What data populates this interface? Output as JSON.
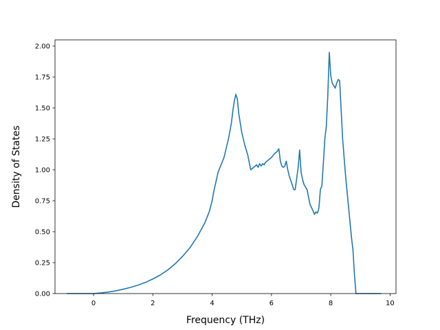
{
  "chart_data": {
    "type": "line",
    "title": "",
    "xlabel": "Frequency (THz)",
    "ylabel": "Density of States",
    "xlim": [
      -1.3,
      10.2
    ],
    "ylim": [
      0,
      2.05
    ],
    "xticks": [
      0,
      2,
      4,
      6,
      8,
      10
    ],
    "xtick_labels": [
      "0",
      "2",
      "4",
      "6",
      "8",
      "10"
    ],
    "yticks": [
      0,
      0.25,
      0.5,
      0.75,
      1.0,
      1.25,
      1.5,
      1.75,
      2.0
    ],
    "ytick_labels": [
      "0.00",
      "0.25",
      "0.50",
      "0.75",
      "1.00",
      "1.25",
      "1.50",
      "1.75",
      "2.00"
    ],
    "grid": false,
    "legend": "none",
    "colors": {
      "line": "#1f77b4",
      "axes": "#000000",
      "background": "#ffffff"
    },
    "series": [
      {
        "x": [
          -0.9,
          -0.5,
          0,
          0.25,
          0.5,
          0.75,
          1.0,
          1.25,
          1.5,
          1.75,
          2.0,
          2.25,
          2.5,
          2.75,
          3.0,
          3.25,
          3.5,
          3.75,
          3.9,
          4.0,
          4.05,
          4.2,
          4.4,
          4.55,
          4.65,
          4.7,
          4.75,
          4.8,
          4.85,
          4.9,
          5.0,
          5.1,
          5.2,
          5.3,
          5.4,
          5.45,
          5.5,
          5.55,
          5.6,
          5.65,
          5.7,
          5.75,
          5.8,
          5.85,
          5.9,
          6.0,
          6.1,
          6.2,
          6.25,
          6.3,
          6.35,
          6.4,
          6.45,
          6.5,
          6.55,
          6.6,
          6.7,
          6.75,
          6.8,
          6.85,
          6.9,
          6.95,
          7.0,
          7.05,
          7.1,
          7.2,
          7.3,
          7.4,
          7.45,
          7.5,
          7.55,
          7.6,
          7.65,
          7.7,
          7.75,
          7.8,
          7.85,
          7.9,
          7.95,
          8.0,
          8.05,
          8.1,
          8.15,
          8.2,
          8.25,
          8.3,
          8.4,
          8.5,
          8.6,
          8.7,
          8.75,
          8.8,
          8.85,
          9.0,
          9.3,
          9.7
        ],
        "values": [
          0,
          0,
          0,
          0.005,
          0.012,
          0.022,
          0.035,
          0.05,
          0.068,
          0.09,
          0.118,
          0.15,
          0.19,
          0.24,
          0.3,
          0.37,
          0.46,
          0.57,
          0.66,
          0.75,
          0.82,
          0.98,
          1.1,
          1.25,
          1.38,
          1.48,
          1.56,
          1.61,
          1.57,
          1.45,
          1.3,
          1.2,
          1.12,
          1.0,
          1.02,
          1.03,
          1.04,
          1.02,
          1.05,
          1.03,
          1.05,
          1.04,
          1.06,
          1.07,
          1.08,
          1.1,
          1.13,
          1.15,
          1.17,
          1.07,
          1.03,
          1.02,
          1.03,
          1.07,
          1.0,
          0.95,
          0.88,
          0.84,
          0.84,
          0.93,
          1.02,
          1.16,
          0.98,
          0.92,
          0.88,
          0.84,
          0.72,
          0.67,
          0.64,
          0.66,
          0.65,
          0.69,
          0.84,
          0.87,
          1.05,
          1.25,
          1.35,
          1.6,
          1.95,
          1.76,
          1.7,
          1.68,
          1.66,
          1.7,
          1.73,
          1.72,
          1.25,
          0.95,
          0.7,
          0.45,
          0.35,
          0.15,
          0.0,
          0.0,
          0.0,
          0.0
        ]
      }
    ]
  }
}
